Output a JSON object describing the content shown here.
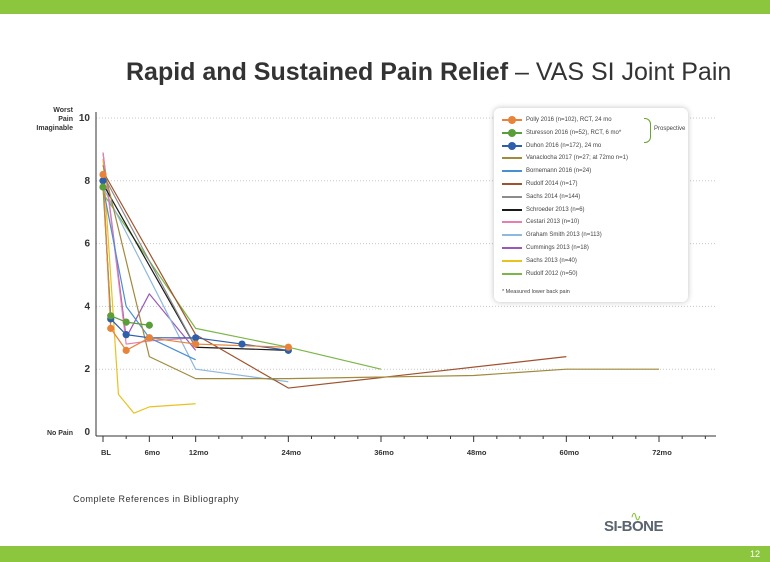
{
  "title": {
    "bold": "Rapid and Sustained Pain Relief",
    "light": " – VAS SI Joint Pain"
  },
  "footnote": "Complete References in Bibliography",
  "logo": "SI-BONE",
  "page_number": "12",
  "legend": {
    "group_label": "Prospective",
    "note": "* Measured lower back pain"
  },
  "colors": {
    "brand_green": "#8cc63f",
    "grid": "#c8c8c8",
    "axis": "#333333"
  },
  "chart_data": {
    "type": "line",
    "title": "",
    "xlabel": "",
    "ylabel": "",
    "ylim": [
      0,
      10
    ],
    "xlim": [
      0,
      72
    ],
    "x_ticks": [
      {
        "value": 0,
        "label": "BL"
      },
      {
        "value": 6,
        "label": "6mo"
      },
      {
        "value": 12,
        "label": "12mo"
      },
      {
        "value": 24,
        "label": "24mo"
      },
      {
        "value": 36,
        "label": "36mo"
      },
      {
        "value": 48,
        "label": "48mo"
      },
      {
        "value": 60,
        "label": "60mo"
      },
      {
        "value": 72,
        "label": "72mo"
      }
    ],
    "y_ticks": [
      {
        "value": 0,
        "label": "0"
      },
      {
        "value": 2,
        "label": "2"
      },
      {
        "value": 4,
        "label": "4"
      },
      {
        "value": 6,
        "label": "6"
      },
      {
        "value": 8,
        "label": "8"
      },
      {
        "value": 10,
        "label": "10"
      }
    ],
    "y_annotations": [
      {
        "value": 10,
        "lines": [
          "Worst",
          "Pain",
          "Imaginable"
        ]
      },
      {
        "value": 0,
        "lines": [
          "No Pain"
        ]
      }
    ],
    "grid": "horizontal dotted",
    "legend_position": "top-right",
    "series": [
      {
        "name": "Polly 2016 (n=102), RCT, 24 mo",
        "color": "#e8833a",
        "markers": true,
        "x": [
          0,
          1,
          3,
          6,
          12,
          24
        ],
        "y": [
          8.2,
          3.3,
          2.6,
          3.0,
          2.8,
          2.7
        ]
      },
      {
        "name": "Sturesson 2016 (n=52), RCT, 6 mo*",
        "color": "#5a9e3a",
        "markers": true,
        "x": [
          0,
          1,
          3,
          6
        ],
        "y": [
          7.8,
          3.7,
          3.5,
          3.4
        ]
      },
      {
        "name": "Duhon 2016 (n=172), 24 mo",
        "color": "#2e5fa8",
        "markers": true,
        "x": [
          0,
          1,
          3,
          6,
          12,
          18,
          24
        ],
        "y": [
          8.0,
          3.6,
          3.1,
          3.0,
          3.0,
          2.8,
          2.6
        ]
      },
      {
        "name": "Vanaclocha 2017 (n=27; at 72mo n=1)",
        "color": "#a08a3c",
        "markers": false,
        "x": [
          0,
          6,
          12,
          24,
          48,
          60,
          72
        ],
        "y": [
          8.5,
          2.4,
          1.7,
          1.7,
          1.8,
          2.0,
          2.0
        ]
      },
      {
        "name": "Bornemann 2016 (n=24)",
        "color": "#4a8fd0",
        "markers": false,
        "x": [
          0,
          3,
          6,
          12
        ],
        "y": [
          7.8,
          4.0,
          3.0,
          2.3
        ]
      },
      {
        "name": "Rudolf 2014 (n=17)",
        "color": "#a0522d",
        "markers": false,
        "x": [
          0,
          12,
          24,
          60
        ],
        "y": [
          8.3,
          3.1,
          1.4,
          2.4
        ]
      },
      {
        "name": "Sachs 2014 (n=144)",
        "color": "#8c8c8c",
        "markers": false,
        "x": [
          0,
          12
        ],
        "y": [
          8.2,
          2.7
        ]
      },
      {
        "name": "Schroeder 2013 (n=6)",
        "color": "#1a1a1a",
        "markers": false,
        "x": [
          0,
          12,
          24
        ],
        "y": [
          7.9,
          2.7,
          2.6
        ]
      },
      {
        "name": "Cestari 2013 (n=10)",
        "color": "#e57fb0",
        "markers": false,
        "x": [
          0,
          3,
          6,
          12
        ],
        "y": [
          8.9,
          2.8,
          2.9,
          3.0
        ]
      },
      {
        "name": "Graham Smith 2013 (n=113)",
        "color": "#8fb8de",
        "markers": false,
        "x": [
          0,
          12,
          24
        ],
        "y": [
          7.8,
          2.0,
          1.6
        ]
      },
      {
        "name": "Cummings 2013 (n=18)",
        "color": "#9b59b6",
        "markers": false,
        "x": [
          0,
          3,
          6,
          12
        ],
        "y": [
          8.9,
          3.0,
          4.4,
          2.6
        ]
      },
      {
        "name": "Sachs 2013 (n=40)",
        "color": "#e8c21f",
        "markers": false,
        "x": [
          0,
          2,
          4,
          6,
          12
        ],
        "y": [
          8.7,
          1.2,
          0.6,
          0.8,
          0.9
        ]
      },
      {
        "name": "Rudolf 2012 (n=50)",
        "color": "#7ab648",
        "markers": false,
        "x": [
          0,
          12,
          24,
          36
        ],
        "y": [
          7.6,
          3.3,
          2.7,
          2.0
        ]
      }
    ]
  }
}
